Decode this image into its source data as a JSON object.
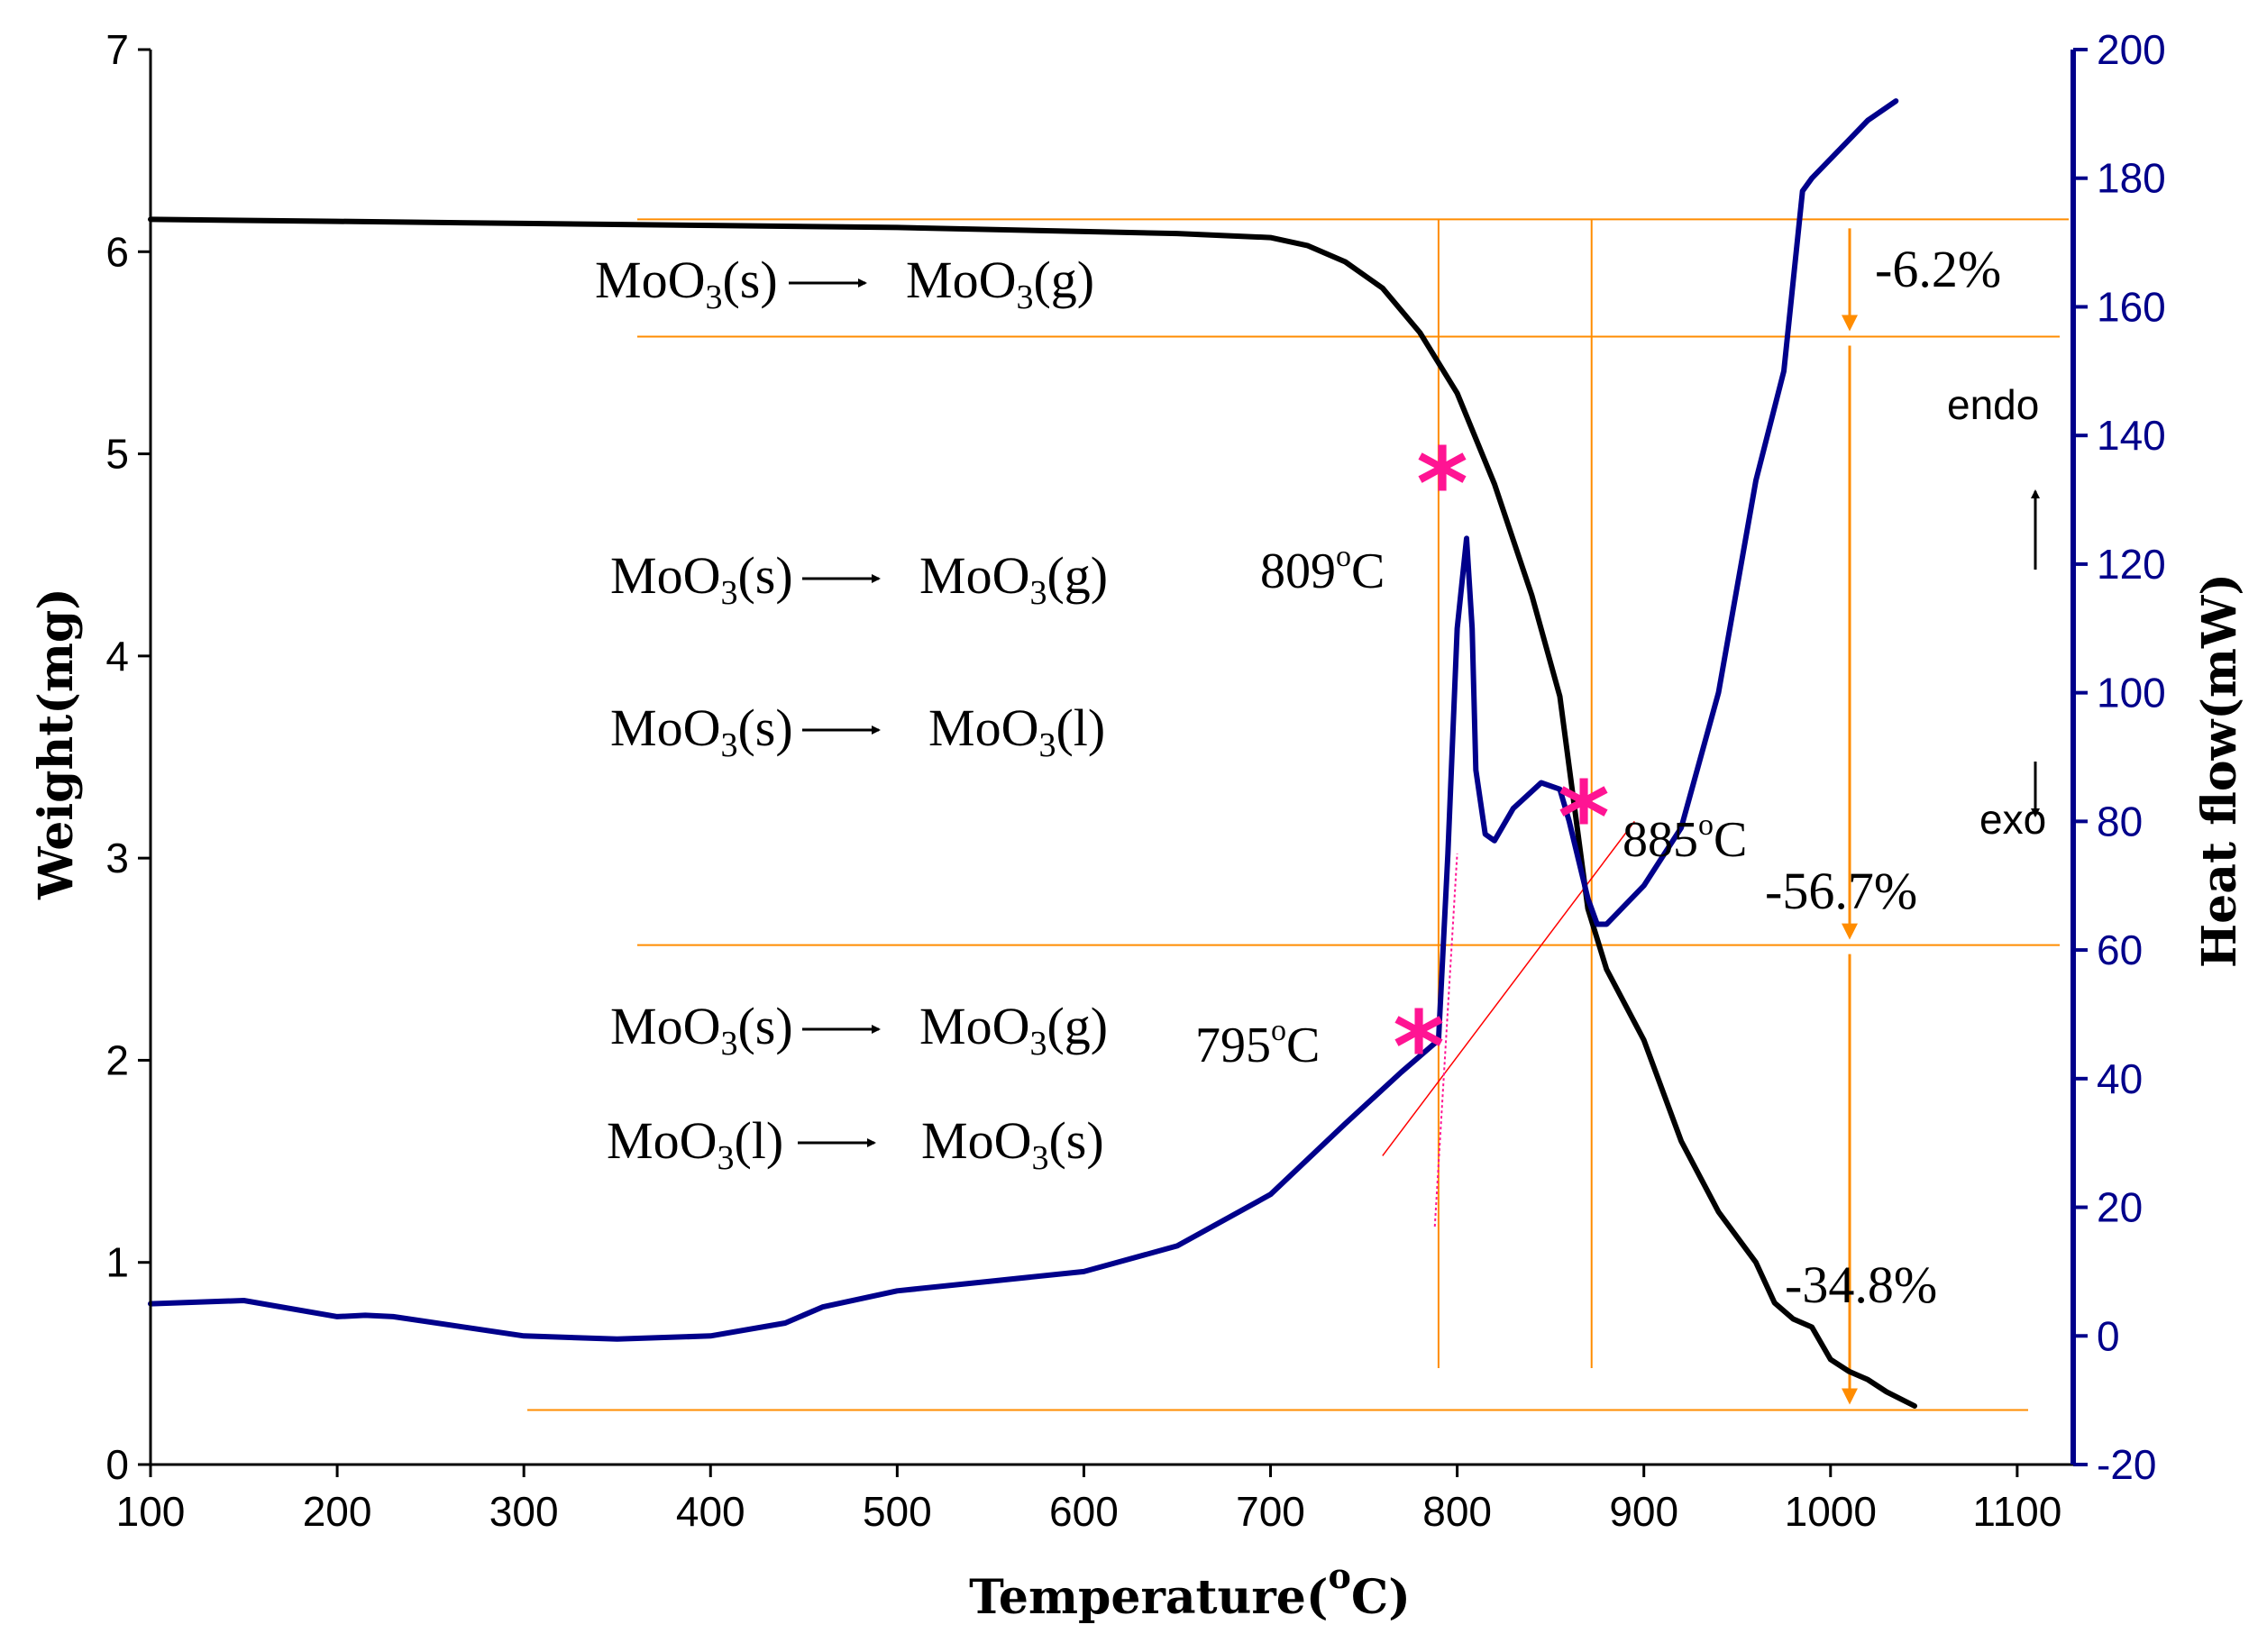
{
  "chart_data": {
    "type": "line",
    "title": "",
    "xlabel": "Temperature(",
    "xlabel_sup": "o",
    "xlabel_end": "C)",
    "ylabel_left": "Weight(mg)",
    "ylabel_right": "Heat flow(mW)",
    "xlim": [
      100,
      1130
    ],
    "ylim_left": [
      0,
      7
    ],
    "ylim_right": [
      -20,
      200
    ],
    "x_ticks": [
      "100",
      "200",
      "300",
      "400",
      "500",
      "600",
      "700",
      "800",
      "900",
      "1000",
      "1100"
    ],
    "y_left_ticks": [
      "0",
      "1",
      "2",
      "3",
      "4",
      "5",
      "6",
      "7"
    ],
    "y_right_ticks": [
      "-20",
      "0",
      "20",
      "40",
      "60",
      "80",
      "100",
      "120",
      "140",
      "160",
      "180",
      "200"
    ],
    "series": [
      {
        "name": "Weight",
        "axis": "left",
        "color": "#000000",
        "x": [
          100,
          200,
          300,
          400,
          500,
          600,
          650,
          700,
          720,
          740,
          760,
          780,
          800,
          820,
          840,
          855,
          870,
          880,
          900,
          920,
          940,
          960,
          970,
          980,
          990,
          1000,
          1010,
          1020,
          1030,
          1045
        ],
        "y": [
          6.16,
          6.15,
          6.14,
          6.13,
          6.12,
          6.1,
          6.09,
          6.07,
          6.03,
          5.95,
          5.82,
          5.6,
          5.3,
          4.85,
          4.3,
          3.8,
          2.75,
          2.45,
          2.1,
          1.6,
          1.25,
          1.0,
          0.8,
          0.72,
          0.68,
          0.52,
          0.46,
          0.42,
          0.36,
          0.29
        ]
      },
      {
        "name": "Heat flow",
        "axis": "right",
        "color": "#00008B",
        "x": [
          100,
          150,
          200,
          215,
          230,
          300,
          350,
          400,
          440,
          460,
          500,
          550,
          600,
          650,
          700,
          740,
          770,
          790,
          795,
          800,
          805,
          808,
          810,
          815,
          820,
          830,
          845,
          855,
          860,
          865,
          870,
          875,
          880,
          890,
          900,
          920,
          940,
          960,
          975,
          985,
          990,
          1000,
          1010,
          1020,
          1035
        ],
        "y": [
          5,
          5.5,
          3,
          3.2,
          3,
          0,
          -0.5,
          0,
          2,
          4.5,
          7,
          8.5,
          10,
          14,
          22,
          33,
          41,
          46,
          75,
          110,
          124,
          110,
          88,
          78,
          77,
          82,
          86,
          85,
          80,
          74,
          68,
          64,
          64,
          67,
          70,
          79,
          100,
          133,
          150,
          178,
          180,
          183,
          186,
          189,
          192
        ]
      }
    ],
    "annotations": {
      "reaction_groups": [
        [
          {
            "lhs": "MoO",
            "sub": "3",
            "state": "(s)",
            "rhs": "MoO",
            "rsub": "3",
            "rstate": "(g)"
          }
        ],
        [
          {
            "lhs": "MoO",
            "sub": "3",
            "state": "(s)",
            "rhs": "MoO",
            "rsub": "3",
            "rstate": "(g)"
          },
          {
            "lhs": "MoO",
            "sub": "3",
            "state": "(s)",
            "rhs": "MoO",
            "rsub": "3",
            "rstate": "(l)"
          }
        ],
        [
          {
            "lhs": "MoO",
            "sub": "3",
            "state": "(s)",
            "rhs": "MoO",
            "rsub": "3",
            "rstate": "(g)"
          },
          {
            "lhs": "MoO",
            "sub": "3",
            "state": "(l)",
            "rhs": "MoO",
            "rsub": "3",
            "rstate": "(s)"
          }
        ]
      ],
      "mass_losses": [
        "-6.2%",
        "-56.7%",
        "-34.8%"
      ],
      "temperatures": [
        {
          "value": "809",
          "sup": "o",
          "unit": "C"
        },
        {
          "value": "885",
          "sup": "o",
          "unit": "C"
        },
        {
          "value": "795",
          "sup": "o",
          "unit": "C"
        }
      ],
      "endo_label": "endo",
      "exo_label": "exo",
      "marker_symbol": "*",
      "step_levels_mg": [
        6.16,
        5.58,
        2.57,
        0.27
      ],
      "vertical_lines_c": [
        790,
        872
      ]
    },
    "colors": {
      "accent_orange": "#FF8C00",
      "marker_pink": "#FF1493",
      "tangent_red": "#FF0000"
    }
  }
}
